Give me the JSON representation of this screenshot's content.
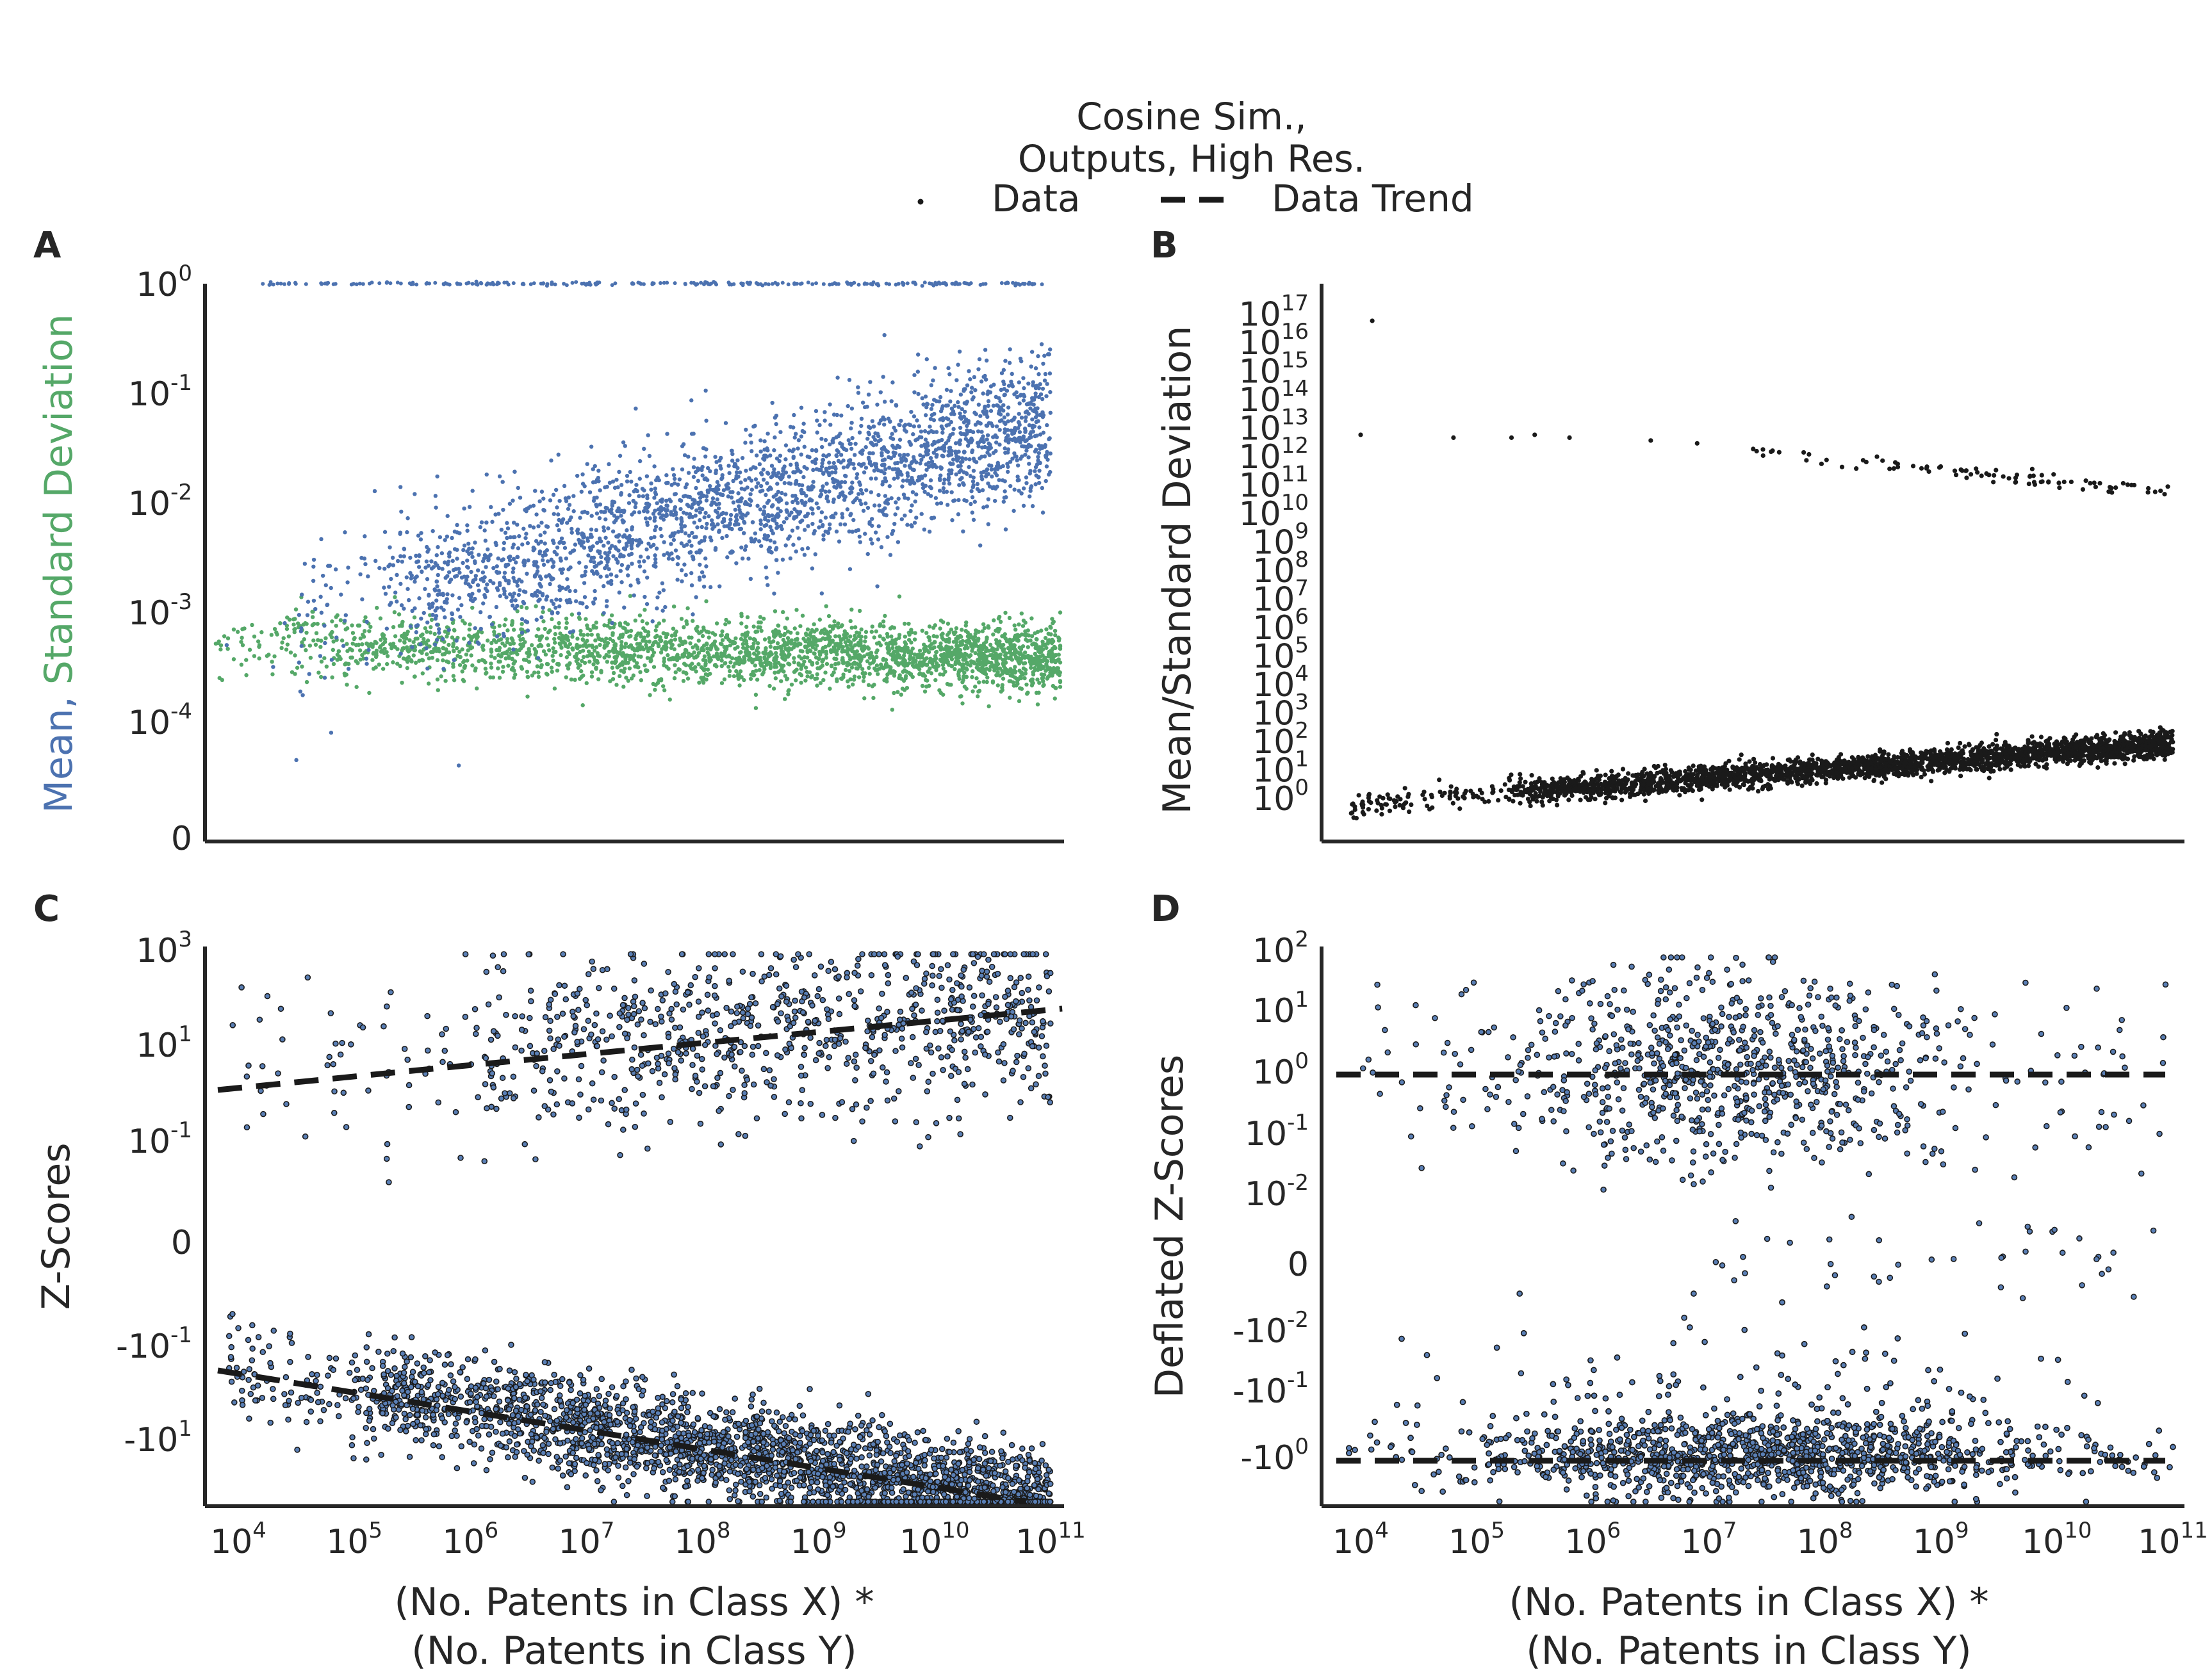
{
  "figure": {
    "legend_title_line1": "Cosine Sim.,",
    "legend_title_line2": "Outputs, High Res.",
    "legend_data_label": "Data",
    "legend_trend_label": "Data Trend"
  },
  "colors": {
    "mean": "#4c72b0",
    "std": "#55a868",
    "black": "#1a1a1a",
    "zpoint": "#5a7fb5"
  },
  "chart_data": [
    {
      "panel": "A",
      "type": "scatter",
      "xscale": "log",
      "xlim_exp": [
        3.7,
        11.1
      ],
      "ylabel_mean": "Mean,",
      "ylabel_std": "Standard Deviation",
      "ytick_labels": [
        "10^0",
        "10^-1",
        "10^-2",
        "10^-3",
        "10^-4",
        "0"
      ],
      "series": [
        {
          "name": "Mean",
          "color": "#4c72b0",
          "center_log_x": [
            5.5,
            11.0
          ],
          "center_log_y": [
            -2.6,
            -1.1
          ],
          "spread_log_y": 0.38,
          "n": 2600
        },
        {
          "name": "Standard Deviation",
          "color": "#55a868",
          "center_log_x": [
            3.8,
            11.0
          ],
          "center_log_y": [
            -3.2,
            -3.35
          ],
          "spread_log_y": 0.17,
          "n": 2600
        }
      ],
      "cap_at_one": "Mean values saturated at 10^0 across 10^4 to 10^11"
    },
    {
      "panel": "B",
      "type": "scatter",
      "xscale": "log",
      "ylabel": "Mean/Standard Deviation",
      "ytick_labels": [
        "10^17",
        "10^16",
        "10^15",
        "10^14",
        "10^13",
        "10^12",
        "10^11",
        "10^10",
        "10^9",
        "10^8",
        "10^7",
        "10^6",
        "10^5",
        "10^4",
        "10^3",
        "10^2",
        "10^1",
        "10^0"
      ],
      "series": [
        {
          "name": "Data (main)",
          "log_x": [
            3.8,
            11.0
          ],
          "log_y": [
            0.3,
            2.1
          ]
        },
        {
          "name": "Data (outliers)",
          "log_x": [
            4.0,
            11.0
          ],
          "log_y": [
            13.0,
            11.0
          ]
        }
      ]
    },
    {
      "panel": "C",
      "type": "scatter",
      "xscale": "log",
      "ylabel": "Z-Scores",
      "ytick_labels": [
        "10^3",
        "10^1",
        "10^-1",
        "0",
        "-10^-1",
        "-10^1"
      ],
      "xtick_labels": [
        "10^4",
        "10^5",
        "10^6",
        "10^7",
        "10^8",
        "10^9",
        "10^10",
        "10^11"
      ],
      "xlabel_line1": "(No. Patents in Class X) *",
      "xlabel_line2": "(No. Patents in Class Y)",
      "trend_positive": {
        "log_x": [
          3.7,
          5.5,
          11.0
        ],
        "value_log": [
          -0.15,
          0.15,
          1.7
        ]
      },
      "trend_negative": {
        "log_x": [
          3.7,
          11.0
        ],
        "value_log": [
          -0.9,
          2.2
        ]
      }
    },
    {
      "panel": "D",
      "type": "scatter",
      "xscale": "log",
      "ylabel": "Deflated Z-Scores",
      "ytick_labels": [
        "10^2",
        "10^1",
        "10^0",
        "10^-1",
        "10^-2",
        "0",
        "-10^-2",
        "-10^-1",
        "-10^0"
      ],
      "xtick_labels": [
        "10^4",
        "10^5",
        "10^6",
        "10^7",
        "10^8",
        "10^9",
        "10^10",
        "10^11"
      ],
      "xlabel_line1": "(No. Patents in Class X) *",
      "xlabel_line2": "(No. Patents in Class Y)",
      "trend_positive": {
        "value": 1.0
      },
      "trend_negative": {
        "value": -1.0
      }
    }
  ]
}
